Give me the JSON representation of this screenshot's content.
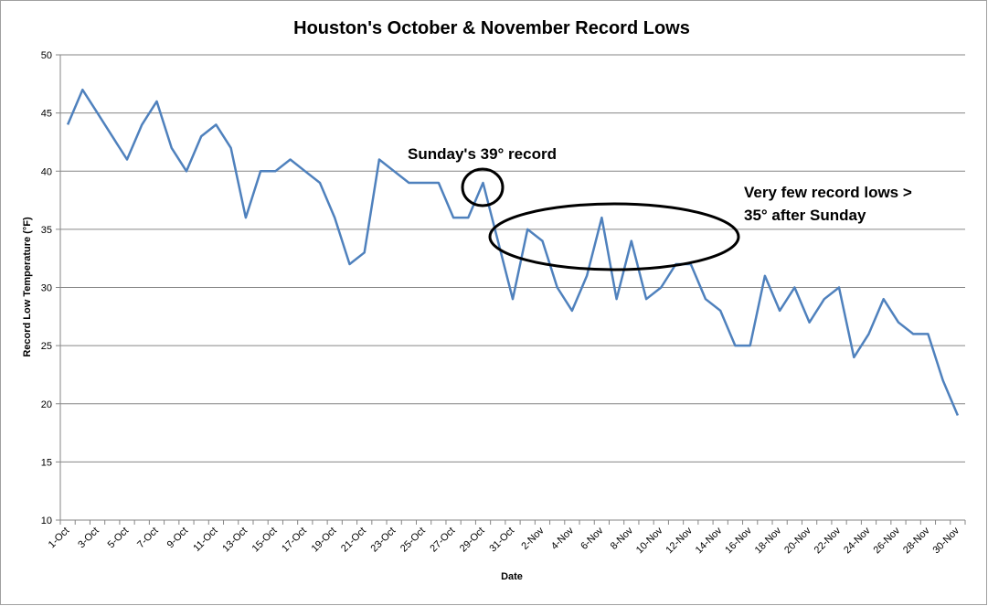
{
  "chart_data": {
    "type": "line",
    "title": "Houston's October & November Record Lows",
    "xlabel": "Date",
    "ylabel": "Record Low Temperature (°F)",
    "ylim": [
      10,
      50
    ],
    "yticks": [
      10,
      15,
      20,
      25,
      30,
      35,
      40,
      45,
      50
    ],
    "grid": true,
    "line_color": "#4F81BD",
    "x": [
      "1-Oct",
      "2-Oct",
      "3-Oct",
      "4-Oct",
      "5-Oct",
      "6-Oct",
      "7-Oct",
      "8-Oct",
      "9-Oct",
      "10-Oct",
      "11-Oct",
      "12-Oct",
      "13-Oct",
      "14-Oct",
      "15-Oct",
      "16-Oct",
      "17-Oct",
      "18-Oct",
      "19-Oct",
      "20-Oct",
      "21-Oct",
      "22-Oct",
      "23-Oct",
      "24-Oct",
      "25-Oct",
      "26-Oct",
      "27-Oct",
      "28-Oct",
      "29-Oct",
      "30-Oct",
      "31-Oct",
      "1-Nov",
      "2-Nov",
      "3-Nov",
      "4-Nov",
      "5-Nov",
      "6-Nov",
      "7-Nov",
      "8-Nov",
      "9-Nov",
      "10-Nov",
      "11-Nov",
      "12-Nov",
      "13-Nov",
      "14-Nov",
      "15-Nov",
      "16-Nov",
      "17-Nov",
      "18-Nov",
      "19-Nov",
      "20-Nov",
      "21-Nov",
      "22-Nov",
      "23-Nov",
      "24-Nov",
      "25-Nov",
      "26-Nov",
      "27-Nov",
      "28-Nov",
      "29-Nov",
      "30-Nov"
    ],
    "tick_labels": [
      "1-Oct",
      "3-Oct",
      "5-Oct",
      "7-Oct",
      "9-Oct",
      "11-Oct",
      "13-Oct",
      "15-Oct",
      "17-Oct",
      "19-Oct",
      "21-Oct",
      "23-Oct",
      "25-Oct",
      "27-Oct",
      "29-Oct",
      "31-Oct",
      "2-Nov",
      "4-Nov",
      "6-Nov",
      "8-Nov",
      "10-Nov",
      "12-Nov",
      "14-Nov",
      "16-Nov",
      "18-Nov",
      "20-Nov",
      "22-Nov",
      "24-Nov",
      "26-Nov",
      "28-Nov",
      "30-Nov"
    ],
    "values": [
      44,
      47,
      45,
      43,
      41,
      44,
      46,
      42,
      40,
      43,
      44,
      42,
      36,
      40,
      40,
      41,
      40,
      39,
      36,
      32,
      33,
      41,
      40,
      39,
      39,
      39,
      36,
      36,
      39,
      34,
      29,
      35,
      34,
      30,
      28,
      31,
      36,
      29,
      34,
      29,
      30,
      32,
      32,
      29,
      28,
      25,
      25,
      31,
      28,
      30,
      27,
      29,
      30,
      24,
      26,
      29,
      27,
      26,
      26,
      22,
      19
    ],
    "annotations": [
      {
        "lines": [
          "Sunday's 39° record"
        ]
      },
      {
        "lines": [
          "Very few record lows >",
          "35° after Sunday"
        ]
      }
    ]
  }
}
